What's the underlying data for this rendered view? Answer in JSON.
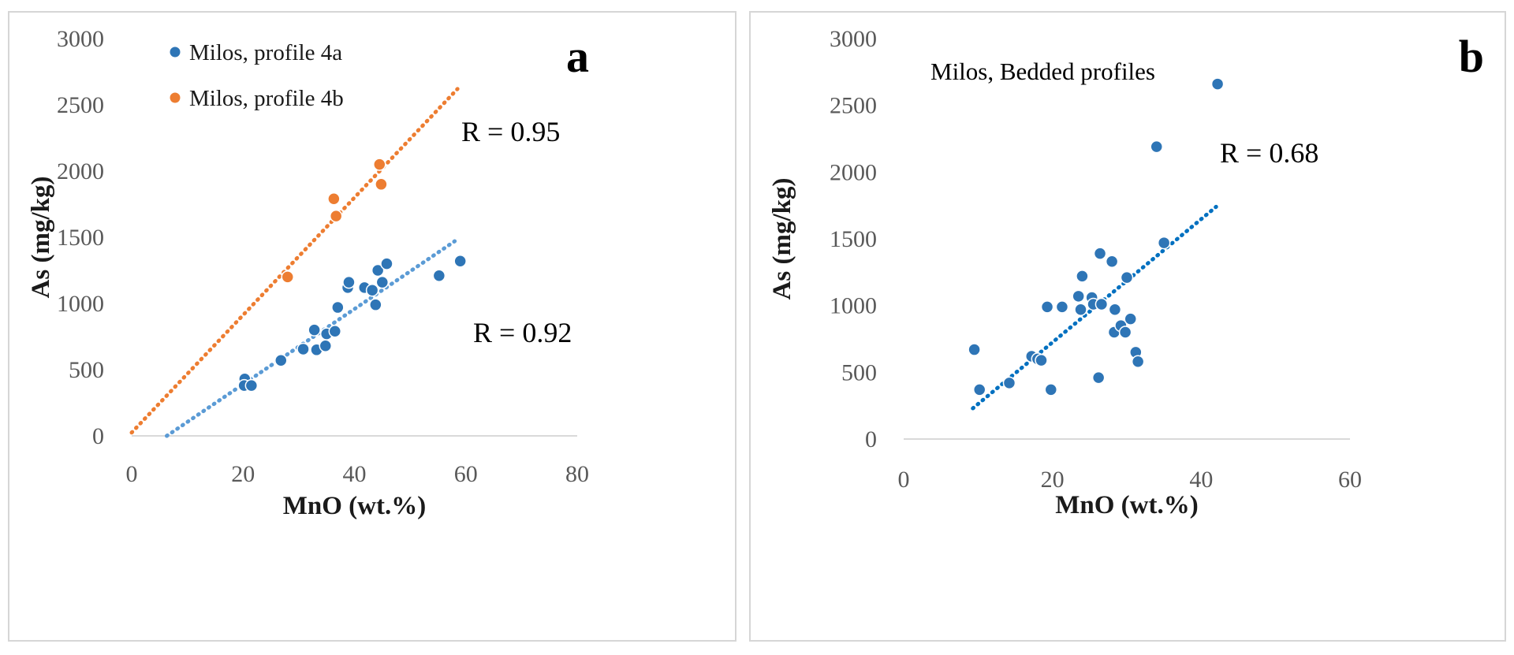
{
  "chart_data": [
    {
      "type": "scatter",
      "panel_label": "a",
      "xlabel": "MnO (wt.%)",
      "ylabel": "As (mg/kg)",
      "xlim": [
        0,
        80
      ],
      "ylim": [
        0,
        3000
      ],
      "xticks": [
        "0",
        "20",
        "40",
        "60",
        "80"
      ],
      "yticks": [
        "0",
        "500",
        "1000",
        "1500",
        "2000",
        "2500",
        "3000"
      ],
      "grid": false,
      "legend_position": "top-left",
      "series": [
        {
          "name": "Milos, profile 4a",
          "color": "#2e75b6",
          "points": [
            [
              20.3,
              430
            ],
            [
              20.2,
              380
            ],
            [
              21.5,
              380
            ],
            [
              26.8,
              570
            ],
            [
              30.8,
              655
            ],
            [
              32.8,
              800
            ],
            [
              33.2,
              650
            ],
            [
              34.8,
              680
            ],
            [
              35.0,
              770
            ],
            [
              36.5,
              790
            ],
            [
              37.0,
              970
            ],
            [
              38.8,
              1120
            ],
            [
              39.0,
              1160
            ],
            [
              41.8,
              1120
            ],
            [
              43.2,
              1100
            ],
            [
              43.8,
              990
            ],
            [
              44.2,
              1250
            ],
            [
              45.0,
              1160
            ],
            [
              45.8,
              1300
            ],
            [
              55.2,
              1210
            ],
            [
              59.0,
              1320
            ]
          ],
          "trendline": {
            "x": [
              6.3,
              58
            ],
            "y": [
              0,
              1470
            ],
            "color": "#5b9bd5"
          },
          "r_label": "R = 0.92"
        },
        {
          "name": "Milos, profile 4b",
          "color": "#ed7d31",
          "points": [
            [
              28.0,
              1200
            ],
            [
              36.3,
              1790
            ],
            [
              36.7,
              1660
            ],
            [
              44.5,
              2050
            ],
            [
              44.8,
              1900
            ]
          ],
          "trendline": {
            "x": [
              0,
              58.5
            ],
            "y": [
              25,
              2620
            ],
            "color": "#ed7d31"
          },
          "r_label": "R = 0.95"
        }
      ]
    },
    {
      "type": "scatter",
      "panel_label": "b",
      "title": "Milos, Bedded profiles",
      "xlabel": "MnO (wt.%)",
      "ylabel": "As (mg/kg)",
      "xlim": [
        0,
        60
      ],
      "ylim": [
        0,
        3000
      ],
      "xticks": [
        "0",
        "20",
        "40",
        "60"
      ],
      "yticks": [
        "0",
        "500",
        "1000",
        "1500",
        "2000",
        "2500",
        "3000"
      ],
      "grid": false,
      "series": [
        {
          "name": "Milos, Bedded profiles",
          "color": "#2e75b6",
          "points": [
            [
              9.5,
              670
            ],
            [
              10.2,
              370
            ],
            [
              14.2,
              420
            ],
            [
              17.2,
              620
            ],
            [
              18.0,
              600
            ],
            [
              18.5,
              590
            ],
            [
              19.3,
              990
            ],
            [
              19.8,
              370
            ],
            [
              21.3,
              990
            ],
            [
              23.5,
              1070
            ],
            [
              23.8,
              970
            ],
            [
              24.0,
              1220
            ],
            [
              25.3,
              1060
            ],
            [
              25.5,
              1010
            ],
            [
              26.2,
              460
            ],
            [
              26.4,
              1390
            ],
            [
              26.6,
              1010
            ],
            [
              28.0,
              1330
            ],
            [
              28.3,
              800
            ],
            [
              28.4,
              970
            ],
            [
              29.2,
              850
            ],
            [
              29.8,
              800
            ],
            [
              30.0,
              1210
            ],
            [
              30.5,
              900
            ],
            [
              31.2,
              650
            ],
            [
              31.5,
              580
            ],
            [
              34.0,
              2190
            ],
            [
              35.0,
              1470
            ],
            [
              42.2,
              2660
            ]
          ],
          "trendline": {
            "x": [
              9.3,
              42
            ],
            "y": [
              230,
              1740
            ],
            "color": "#0070c0"
          },
          "r_label": "R = 0.68"
        }
      ]
    }
  ]
}
